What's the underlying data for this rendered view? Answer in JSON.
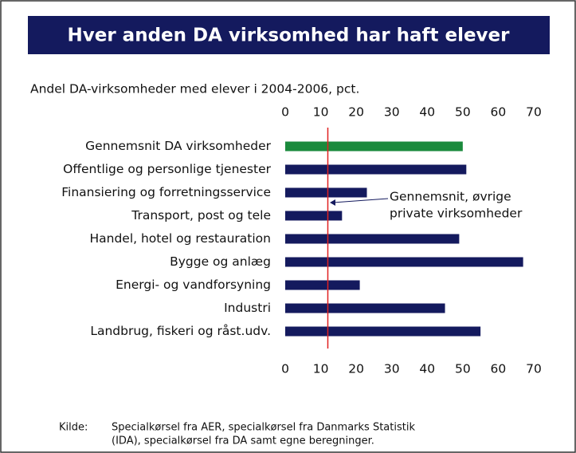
{
  "chart_data": {
    "type": "bar",
    "orientation": "horizontal",
    "title": "Hver anden DA virksomhed har haft elever",
    "subtitle": "Andel DA-virksomheder med elever i 2004-2006, pct.",
    "categories": [
      "Gennemsnit DA virksomheder",
      "Offentlige og personlige tjenester",
      "Finansiering og forretningsservice",
      "Transport, post og tele",
      "Handel, hotel og restauration",
      "Bygge og anlæg",
      "Energi- og vandforsyning",
      "Industri",
      "Landbrug, fiskeri og råst.udv."
    ],
    "values": [
      50,
      51,
      23,
      16,
      49,
      67,
      21,
      45,
      55
    ],
    "colors": [
      "#1a8a3c",
      "#141a5e",
      "#141a5e",
      "#141a5e",
      "#141a5e",
      "#141a5e",
      "#141a5e",
      "#141a5e",
      "#141a5e"
    ],
    "xlim": [
      0,
      70
    ],
    "xticks": [
      0,
      10,
      20,
      30,
      40,
      50,
      60,
      70
    ],
    "reference_line": {
      "value": 12,
      "color": "#e02020"
    },
    "annotation": [
      "Gennemsnit, øvrige",
      "private virksomheder"
    ],
    "source": {
      "label": "Kilde:",
      "lines": [
        "Specialkørsel fra AER, specialkørsel fra Danmarks Statistik",
        "(IDA), specialkørsel fra DA samt egne beregninger."
      ]
    }
  }
}
